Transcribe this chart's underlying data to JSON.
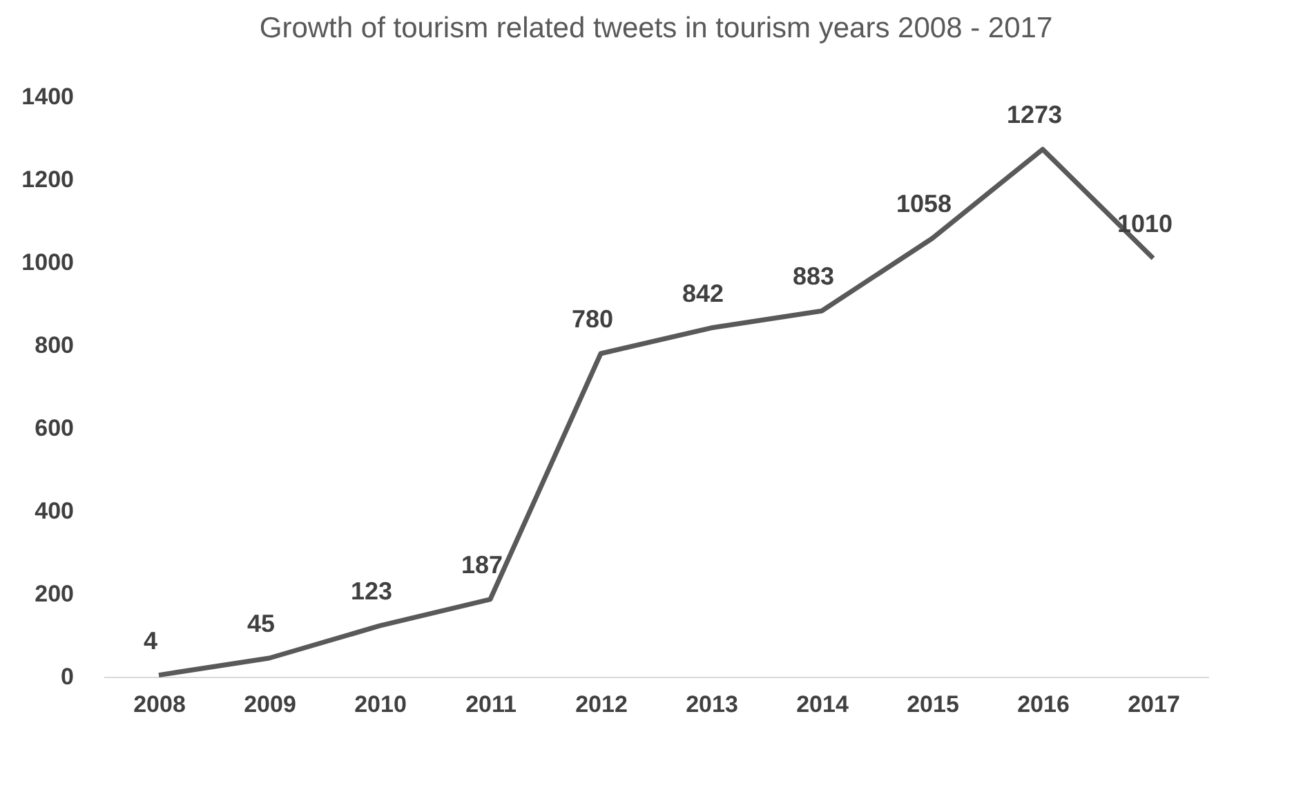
{
  "chart_data": {
    "type": "line",
    "title": "Growth of tourism related tweets in tourism years 2008 - 2017",
    "categories": [
      "2008",
      "2009",
      "2010",
      "2011",
      "2012",
      "2013",
      "2014",
      "2015",
      "2016",
      "2017"
    ],
    "series": [
      {
        "color": "#595959",
        "values": [
          4,
          45,
          123,
          187,
          780,
          842,
          883,
          1058,
          1273,
          1010
        ]
      }
    ],
    "ylim": [
      0,
      1400
    ],
    "yticks": [
      0,
      200,
      400,
      600,
      800,
      1000,
      1200,
      1400
    ],
    "grid": false,
    "legend": false,
    "marker": "none",
    "line_style": "solid",
    "data_labels": true
  }
}
